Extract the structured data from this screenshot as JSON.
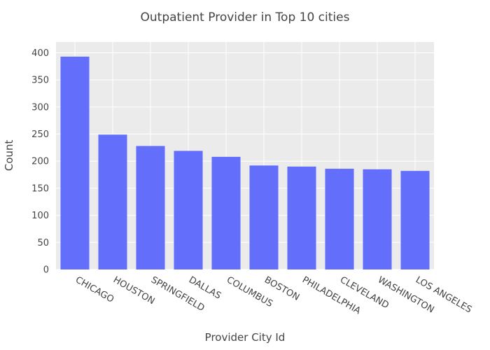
{
  "chart_data": {
    "type": "bar",
    "title": "Outpatient Provider in Top 10 cities",
    "xlabel": "Provider City Id",
    "ylabel": "Count",
    "categories": [
      "CHICAGO",
      "HOUSTON",
      "SPRINGFIELD",
      "DALLAS",
      "COLUMBUS",
      "BOSTON",
      "PHILADELPHIA",
      "CLEVELAND",
      "WASHINGTON",
      "LOS ANGELES"
    ],
    "values": [
      393,
      249,
      228,
      219,
      208,
      192,
      190,
      186,
      185,
      182
    ],
    "ylim": [
      0,
      420
    ],
    "yticks": [
      0,
      50,
      100,
      150,
      200,
      250,
      300,
      350,
      400
    ],
    "grid": true,
    "legend": "none",
    "colors": {
      "bar": "#636efa",
      "plot_bg": "#ebebeb",
      "grid": "#ffffff",
      "text": "#444444"
    }
  }
}
